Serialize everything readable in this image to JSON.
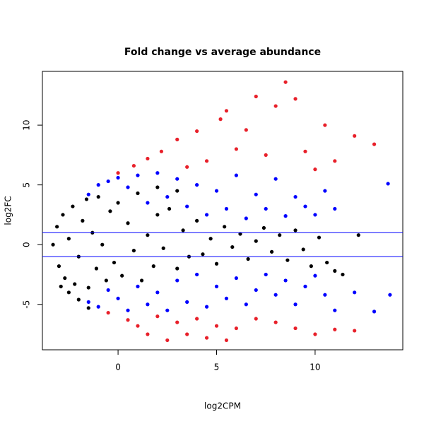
{
  "chart_data": {
    "type": "scatter",
    "title": "Fold change vs average abundance",
    "x_label": "log2CPM",
    "y_label": "log2FC",
    "xlim": [
      -3.84,
      14.45
    ],
    "ylim": [
      -8.8,
      14.5
    ],
    "xticks": [
      0,
      5,
      10
    ],
    "yticks": [
      -5,
      0,
      5,
      10
    ],
    "hlines": [
      1,
      -1
    ],
    "hline_color": "#0000ff",
    "series": [
      {
        "color": "#000000",
        "x": [
          -3.3,
          -3.1,
          -3.0,
          -2.8,
          -2.7,
          -2.5,
          -2.3,
          -2.2,
          -2,
          -1.8,
          -1.6,
          -1.5,
          -1.3,
          -1.1,
          -1,
          -0.8,
          -0.6,
          -0.4,
          -0.2,
          0,
          0.2,
          0.5,
          0.8,
          1,
          1.2,
          1.5,
          1.8,
          2,
          2.3,
          2.6,
          3,
          3.3,
          3.6,
          4,
          4.3,
          4.7,
          5,
          5.4,
          5.8,
          6.2,
          6.6,
          7,
          7.4,
          7.8,
          8.2,
          8.6,
          9,
          9.4,
          9.8,
          10.2,
          10.6,
          11,
          11.4,
          12.2,
          -2.9,
          -2.5,
          -2,
          -1.5,
          3,
          2
        ],
        "values": [
          0,
          1.5,
          -1.8,
          2.5,
          -2.8,
          0.5,
          3.2,
          -3.3,
          -1,
          2,
          3.8,
          -3.6,
          1,
          -2,
          4,
          0,
          -3,
          2.8,
          -1.5,
          3.5,
          -2.6,
          1.8,
          -0.5,
          4.3,
          -3,
          0.8,
          -1.8,
          2.5,
          -0.3,
          3,
          -2,
          1.2,
          -1,
          2,
          -0.8,
          0.5,
          -1.6,
          1.5,
          -0.2,
          0.9,
          -1.2,
          0.3,
          1.4,
          -0.6,
          0.8,
          -1.3,
          1.2,
          -0.4,
          -1.8,
          0.6,
          -1.5,
          -2.2,
          -2.5,
          0.8,
          -3.5,
          -4,
          -4.6,
          -5.3,
          4.5,
          4.8
        ]
      },
      {
        "color": "#0000ff",
        "x": [
          -1.5,
          -1,
          -0.5,
          0,
          0.5,
          1,
          1.5,
          2,
          2.5,
          3,
          3.5,
          4,
          4.5,
          5,
          5.5,
          6,
          6.5,
          7,
          7.5,
          8,
          8.5,
          9,
          9.5,
          10,
          10.5,
          11,
          13.7,
          -1.5,
          -1,
          -0.5,
          0,
          0.5,
          1,
          1.5,
          2,
          2.5,
          3,
          3.5,
          4,
          4.5,
          5,
          5.5,
          6,
          6.5,
          7,
          7.5,
          8,
          8.5,
          9,
          9.5,
          10,
          10.5,
          11,
          12,
          13,
          13.8
        ],
        "values": [
          4.2,
          5,
          5.3,
          5.6,
          4.8,
          5.8,
          3.5,
          6,
          4,
          5.5,
          3.2,
          5,
          2.5,
          4.5,
          3,
          5.8,
          2.2,
          4.2,
          3,
          5.5,
          2.4,
          4,
          3.2,
          2.5,
          4.5,
          3,
          5.1,
          -4.8,
          -5.2,
          -3.8,
          -4.5,
          -5.5,
          -3.5,
          -5,
          -4,
          -5.5,
          -3,
          -4.8,
          -2.5,
          -5.2,
          -3.5,
          -4.5,
          -2.8,
          -5,
          -3.8,
          -2.5,
          -4.2,
          -3,
          -5,
          -3.5,
          -2.6,
          -4.2,
          -5.5,
          -4,
          -5.6,
          -4.2
        ]
      },
      {
        "color": "#e8202a",
        "x": [
          0,
          0.8,
          1.5,
          2.2,
          3,
          3.5,
          4,
          4.5,
          5.2,
          5.5,
          6,
          6.5,
          7,
          7.5,
          8,
          8.5,
          9,
          9.5,
          10,
          10.5,
          11,
          12,
          13,
          -0.5,
          0.5,
          1,
          1.5,
          2,
          2.5,
          3,
          3.5,
          4,
          4.5,
          5,
          5.5,
          6,
          7,
          8,
          9,
          10,
          11,
          12
        ],
        "values": [
          6,
          6.6,
          7.2,
          7.8,
          8.8,
          6.5,
          9.5,
          7,
          10.5,
          11.2,
          8,
          9.6,
          12.4,
          7.5,
          11.6,
          13.6,
          12.2,
          7.8,
          6.3,
          10,
          7,
          9.1,
          8.4,
          -5.7,
          -6.3,
          -6.8,
          -7.5,
          -6,
          -8,
          -6.5,
          -7.5,
          -6.2,
          -7.8,
          -6.8,
          -8,
          -7,
          -6.2,
          -6.5,
          -7,
          -7.5,
          -7.1,
          -7.2
        ]
      }
    ]
  }
}
